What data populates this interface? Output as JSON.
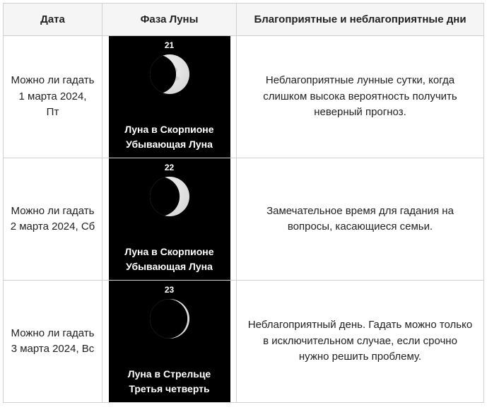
{
  "table": {
    "headers": {
      "date": "Дата",
      "phase": "Фаза Луны",
      "desc": "Благоприятные и неблагоприятные дни"
    },
    "rows": [
      {
        "date_html": "Можно ли гадать 1 марта 2024,<br>Пт",
        "moon_day": "21",
        "moon_sign": "Луна в Скорпионе",
        "moon_phase": "Убывающая Луна",
        "moon_illumination": 0.82,
        "moon_waning": true,
        "description": "Неблагоприятные лунные сутки, когда слишком высока вероятность получить неверный прогноз."
      },
      {
        "date_html": "Можно ли гадать 2 марта 2024, Сб",
        "moon_day": "22",
        "moon_sign": "Луна в Скорпионе",
        "moon_phase": "Убывающая Луна",
        "moon_illumination": 0.72,
        "moon_waning": true,
        "description": "Замечательное время для гадания на вопросы, касающиеся семьи."
      },
      {
        "date_html": "Можно ли гадать 3 марта 2024, Вс",
        "moon_day": "23",
        "moon_sign": "Луна в Стрельце",
        "moon_phase": "Третья четверть",
        "moon_illumination": 0.5,
        "moon_waning": true,
        "description": "Неблагоприятный день. Гадать можно только в исключительном случае, если срочно нужно решить проблему."
      }
    ],
    "moon_colors": {
      "light": "#d8d8d8",
      "shade": "#a7a7a7",
      "crater": "#c2c2c2",
      "bg": "#000000"
    }
  }
}
